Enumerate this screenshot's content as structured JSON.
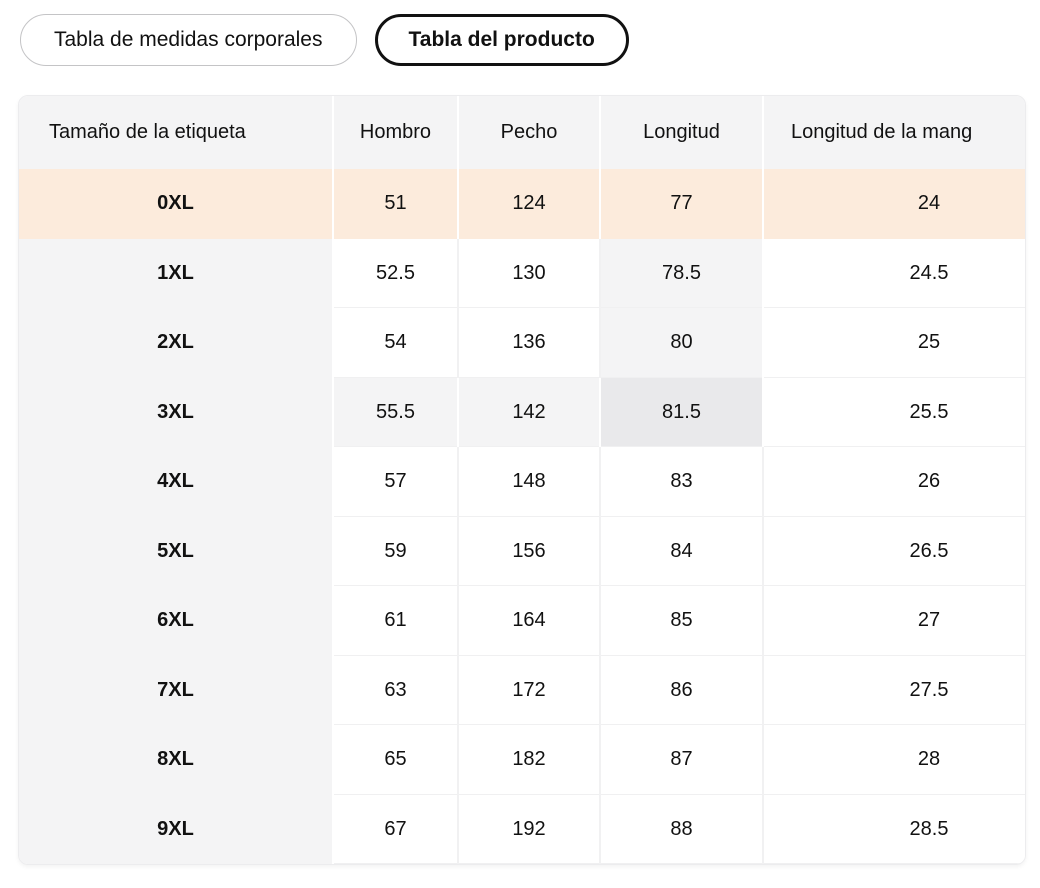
{
  "tabs": [
    {
      "label": "Tabla de medidas corporales",
      "selected": false
    },
    {
      "label": "Tabla del producto",
      "selected": true
    }
  ],
  "table": {
    "columns": [
      "Tamaño de la etiqueta",
      "Hombro",
      "Pecho",
      "Longitud",
      "Longitud de la mang"
    ],
    "rows": [
      {
        "size": "0XL",
        "values": [
          "51",
          "124",
          "77",
          "24"
        ],
        "row_highlight": "selected"
      },
      {
        "size": "1XL",
        "values": [
          "52.5",
          "130",
          "78.5",
          "24.5"
        ],
        "shades": [
          null,
          null,
          "light",
          null
        ]
      },
      {
        "size": "2XL",
        "values": [
          "54",
          "136",
          "80",
          "25"
        ],
        "shades": [
          null,
          null,
          "light",
          null
        ]
      },
      {
        "size": "3XL",
        "values": [
          "55.5",
          "142",
          "81.5",
          "25.5"
        ],
        "shades": [
          "light",
          "light",
          "dark",
          null
        ]
      },
      {
        "size": "4XL",
        "values": [
          "57",
          "148",
          "83",
          "26"
        ]
      },
      {
        "size": "5XL",
        "values": [
          "59",
          "156",
          "84",
          "26.5"
        ]
      },
      {
        "size": "6XL",
        "values": [
          "61",
          "164",
          "85",
          "27"
        ]
      },
      {
        "size": "7XL",
        "values": [
          "63",
          "172",
          "86",
          "27.5"
        ]
      },
      {
        "size": "8XL",
        "values": [
          "65",
          "182",
          "87",
          "28"
        ]
      },
      {
        "size": "9XL",
        "values": [
          "67",
          "192",
          "88",
          "28.5"
        ]
      }
    ]
  },
  "colors": {
    "selected_row_bg": "#fcebdc",
    "shade_light": "#f4f4f5",
    "shade_dark": "#e9e9eb",
    "header_bg": "#f4f4f5",
    "label_col_bg": "#f4f4f5",
    "tab_border": "#c4c4c6",
    "tab_selected_border": "#111111",
    "text": "#111111"
  }
}
